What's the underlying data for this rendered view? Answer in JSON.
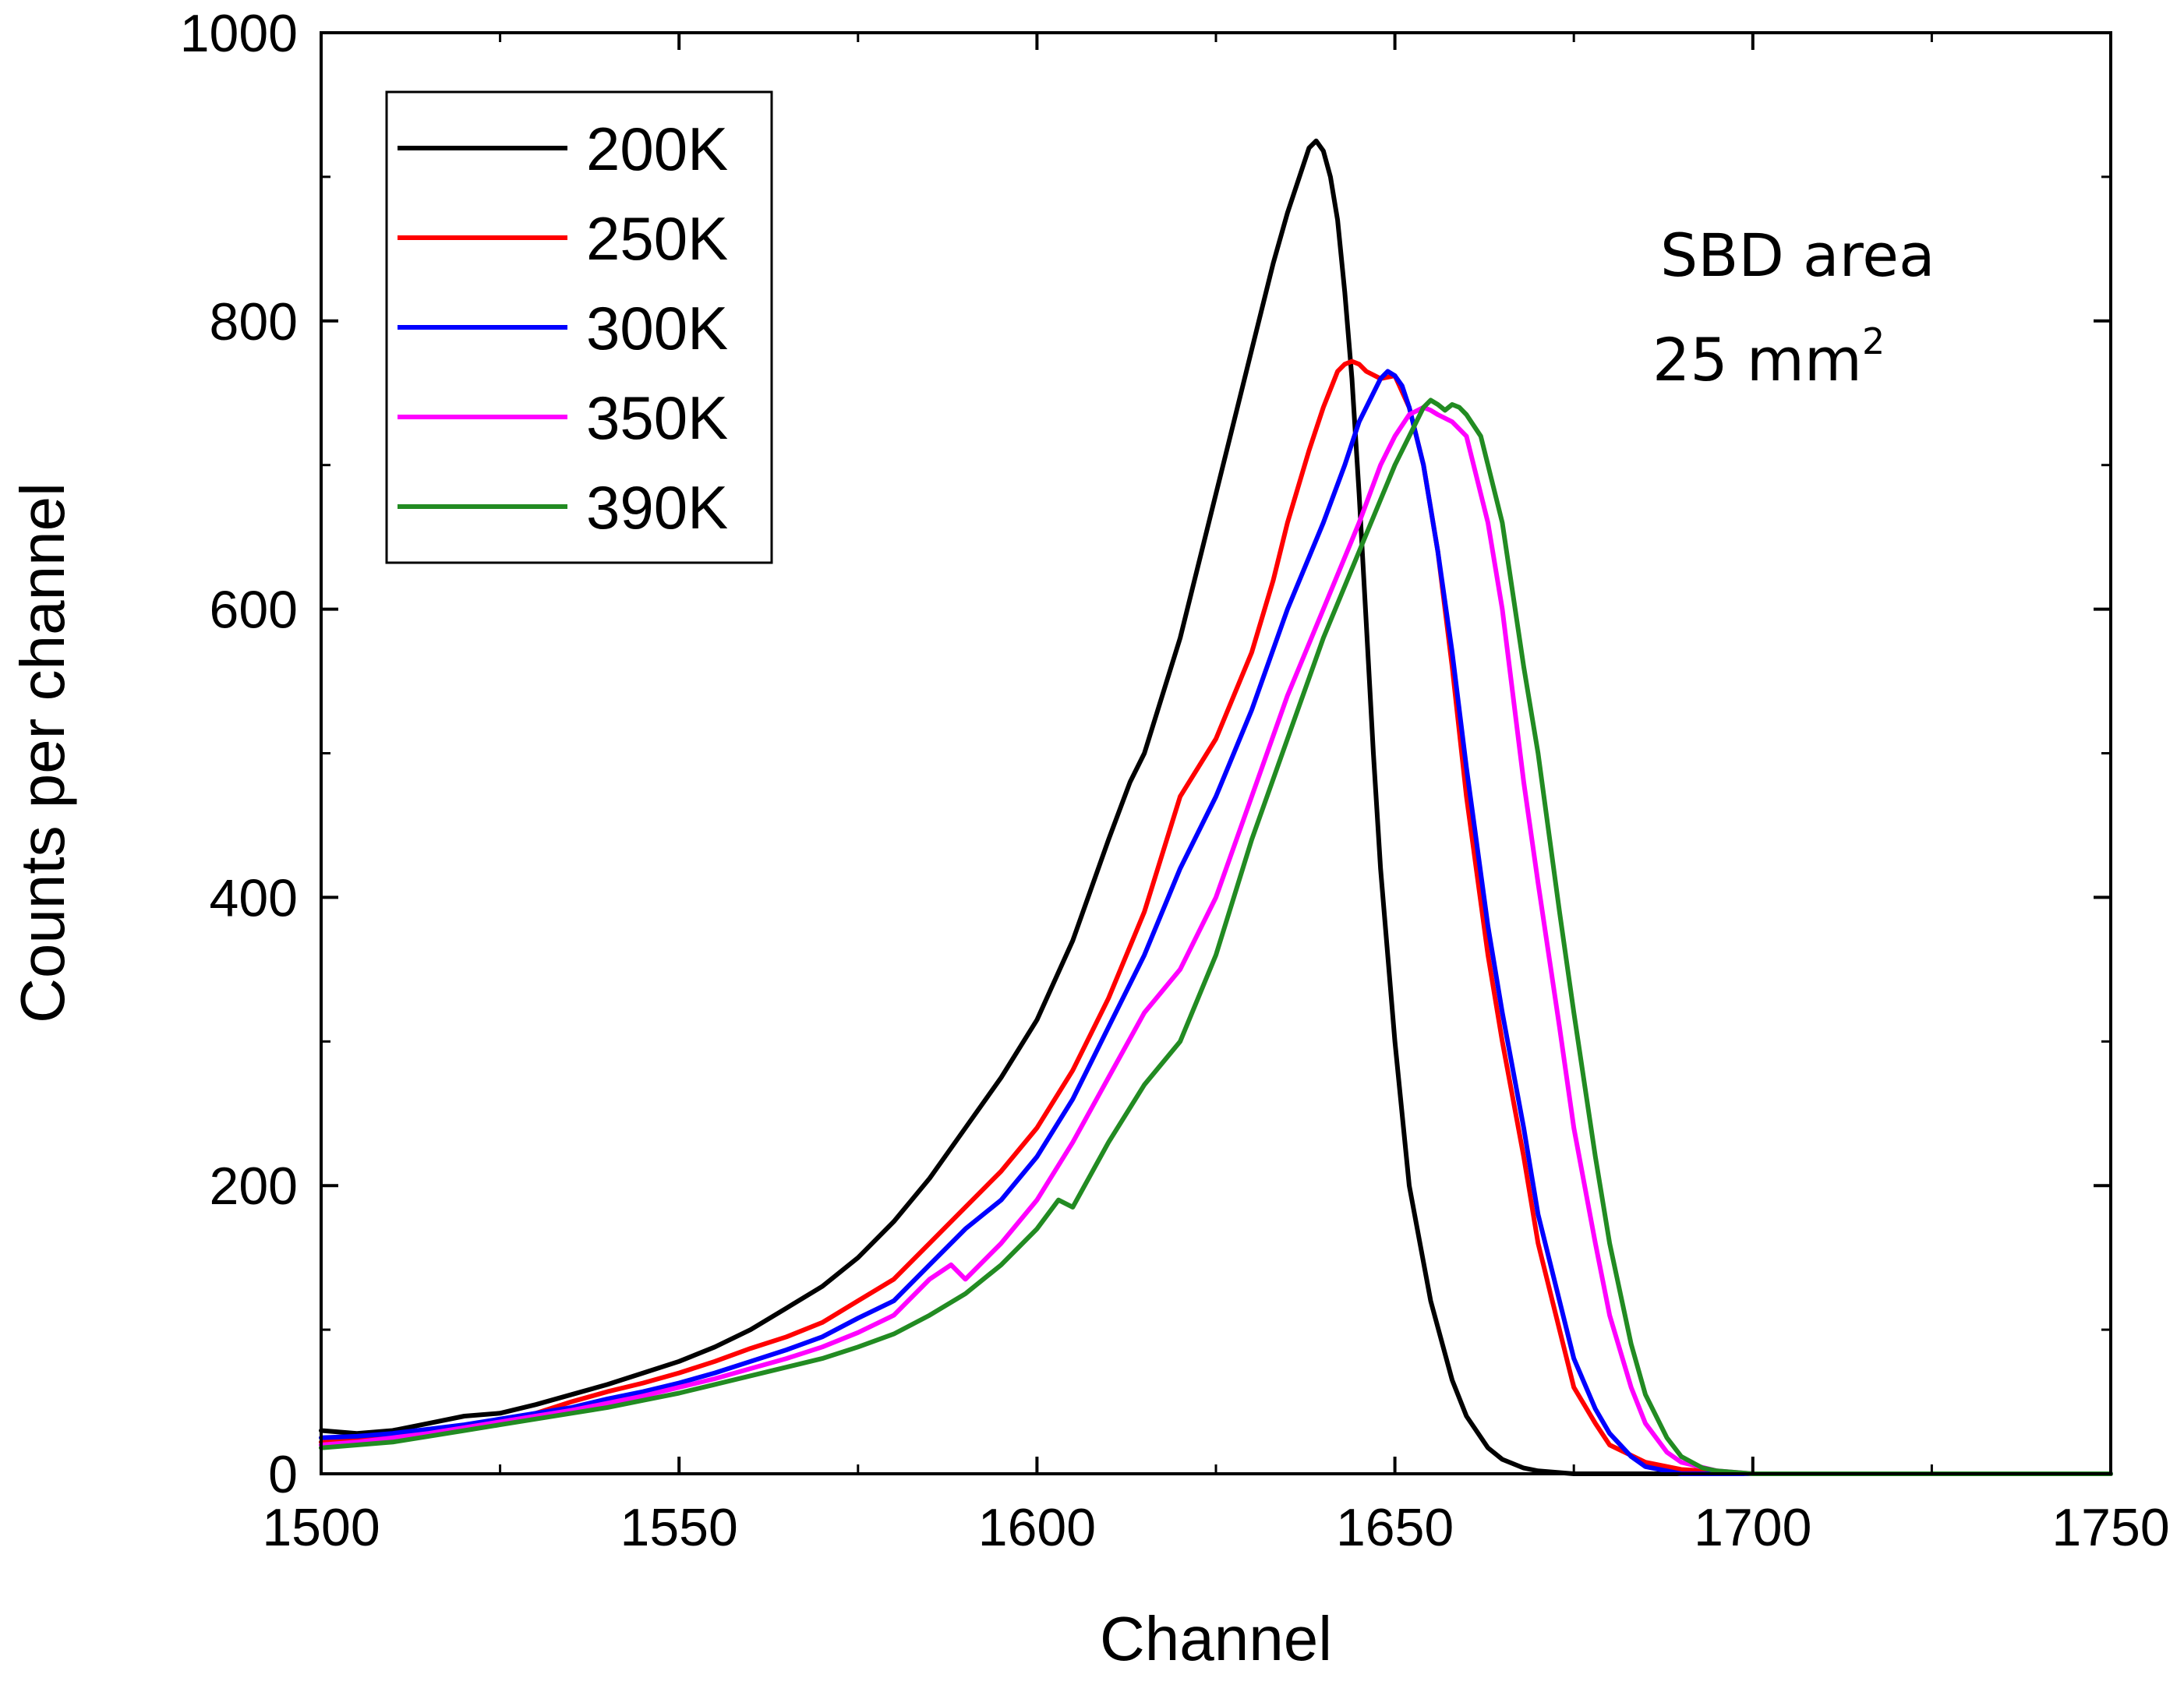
{
  "chart_data": {
    "type": "line",
    "title": "",
    "xlabel": "Channel",
    "ylabel": "Counts per channel",
    "xlim": [
      1500,
      1750
    ],
    "ylim": [
      0,
      1000
    ],
    "xticks": [
      1500,
      1550,
      1600,
      1650,
      1700,
      1750
    ],
    "yticks": [
      0,
      200,
      400,
      600,
      800,
      1000
    ],
    "grid": false,
    "legend_position": "top-left",
    "annotation": {
      "line1": "SBD area",
      "line2": "25 mm",
      "sup": "2"
    },
    "series": [
      {
        "name": "200K",
        "color": "#000000",
        "x": [
          1500,
          1505,
          1510,
          1515,
          1520,
          1525,
          1530,
          1535,
          1540,
          1545,
          1550,
          1555,
          1560,
          1565,
          1570,
          1575,
          1580,
          1585,
          1590,
          1595,
          1600,
          1605,
          1610,
          1613,
          1615,
          1620,
          1625,
          1628,
          1630,
          1633,
          1635,
          1637,
          1638,
          1639,
          1640,
          1641,
          1642,
          1643,
          1644,
          1645,
          1646,
          1647,
          1648,
          1650,
          1652,
          1655,
          1658,
          1660,
          1663,
          1665,
          1668,
          1670,
          1675,
          1700,
          1750
        ],
        "y": [
          30,
          28,
          30,
          35,
          40,
          42,
          48,
          55,
          62,
          70,
          78,
          88,
          100,
          115,
          130,
          150,
          175,
          205,
          240,
          275,
          315,
          370,
          440,
          480,
          500,
          580,
          680,
          740,
          780,
          840,
          875,
          905,
          920,
          925,
          918,
          900,
          870,
          820,
          760,
          680,
          590,
          500,
          420,
          300,
          200,
          120,
          65,
          40,
          18,
          10,
          4,
          2,
          0,
          0,
          0
        ]
      },
      {
        "name": "250K",
        "color": "#ff0000",
        "x": [
          1500,
          1505,
          1510,
          1515,
          1520,
          1525,
          1530,
          1535,
          1540,
          1545,
          1550,
          1555,
          1560,
          1565,
          1570,
          1575,
          1580,
          1585,
          1590,
          1595,
          1600,
          1605,
          1610,
          1615,
          1620,
          1625,
          1630,
          1633,
          1635,
          1638,
          1640,
          1642,
          1643,
          1644,
          1645,
          1646,
          1648,
          1650,
          1652,
          1654,
          1656,
          1658,
          1660,
          1663,
          1665,
          1668,
          1670,
          1673,
          1675,
          1678,
          1680,
          1685,
          1690,
          1700,
          1750
        ],
        "y": [
          22,
          24,
          27,
          30,
          33,
          37,
          42,
          50,
          57,
          63,
          70,
          78,
          87,
          95,
          105,
          120,
          135,
          160,
          185,
          210,
          240,
          280,
          330,
          390,
          470,
          510,
          570,
          620,
          660,
          710,
          740,
          765,
          770,
          772,
          770,
          765,
          760,
          762,
          740,
          700,
          640,
          560,
          470,
          360,
          300,
          220,
          160,
          100,
          60,
          35,
          20,
          8,
          3,
          0,
          0
        ]
      },
      {
        "name": "300K",
        "color": "#0000ff",
        "x": [
          1500,
          1505,
          1510,
          1515,
          1520,
          1525,
          1530,
          1535,
          1540,
          1545,
          1550,
          1555,
          1560,
          1565,
          1570,
          1575,
          1580,
          1585,
          1590,
          1595,
          1600,
          1605,
          1610,
          1615,
          1620,
          1625,
          1630,
          1635,
          1640,
          1643,
          1645,
          1647,
          1648,
          1649,
          1650,
          1651,
          1652,
          1654,
          1656,
          1658,
          1660,
          1663,
          1665,
          1668,
          1670,
          1673,
          1675,
          1678,
          1680,
          1683,
          1685,
          1690,
          1700,
          1750
        ],
        "y": [
          25,
          26,
          28,
          31,
          34,
          38,
          42,
          46,
          52,
          57,
          63,
          70,
          78,
          86,
          95,
          108,
          120,
          145,
          170,
          190,
          220,
          260,
          310,
          360,
          420,
          470,
          530,
          600,
          660,
          700,
          730,
          750,
          760,
          765,
          762,
          755,
          740,
          700,
          640,
          570,
          490,
          380,
          320,
          240,
          180,
          120,
          80,
          45,
          28,
          12,
          5,
          0,
          0,
          0
        ]
      },
      {
        "name": "350K",
        "color": "#ff00ff",
        "x": [
          1500,
          1505,
          1510,
          1515,
          1520,
          1525,
          1530,
          1535,
          1540,
          1545,
          1550,
          1555,
          1560,
          1565,
          1570,
          1575,
          1580,
          1585,
          1588,
          1590,
          1595,
          1600,
          1605,
          1610,
          1615,
          1620,
          1625,
          1630,
          1635,
          1640,
          1645,
          1648,
          1650,
          1652,
          1654,
          1655,
          1656,
          1658,
          1660,
          1663,
          1665,
          1668,
          1670,
          1673,
          1675,
          1678,
          1680,
          1683,
          1685,
          1688,
          1690,
          1695,
          1700,
          1750
        ],
        "y": [
          20,
          22,
          25,
          28,
          32,
          36,
          40,
          44,
          49,
          54,
          60,
          66,
          73,
          80,
          88,
          98,
          110,
          135,
          145,
          135,
          160,
          190,
          230,
          275,
          320,
          350,
          400,
          470,
          540,
          600,
          660,
          700,
          720,
          735,
          740,
          738,
          735,
          730,
          720,
          660,
          600,
          480,
          410,
          310,
          240,
          160,
          110,
          60,
          35,
          15,
          8,
          2,
          0,
          0
        ]
      },
      {
        "name": "390K",
        "color": "#228b22",
        "x": [
          1500,
          1505,
          1510,
          1515,
          1520,
          1525,
          1530,
          1535,
          1540,
          1545,
          1550,
          1555,
          1560,
          1565,
          1570,
          1575,
          1580,
          1585,
          1590,
          1595,
          1600,
          1603,
          1605,
          1610,
          1615,
          1620,
          1625,
          1630,
          1635,
          1640,
          1645,
          1650,
          1652,
          1654,
          1655,
          1656,
          1657,
          1658,
          1659,
          1660,
          1662,
          1663,
          1665,
          1668,
          1670,
          1673,
          1675,
          1678,
          1680,
          1683,
          1685,
          1688,
          1690,
          1693,
          1695,
          1700,
          1750
        ],
        "y": [
          18,
          20,
          22,
          26,
          30,
          34,
          38,
          42,
          46,
          51,
          56,
          62,
          68,
          74,
          80,
          88,
          97,
          110,
          125,
          145,
          170,
          190,
          185,
          230,
          270,
          300,
          360,
          440,
          510,
          580,
          640,
          700,
          720,
          740,
          745,
          742,
          738,
          742,
          740,
          735,
          720,
          700,
          660,
          560,
          500,
          390,
          320,
          220,
          160,
          90,
          55,
          25,
          12,
          4,
          2,
          0,
          0
        ]
      }
    ]
  }
}
